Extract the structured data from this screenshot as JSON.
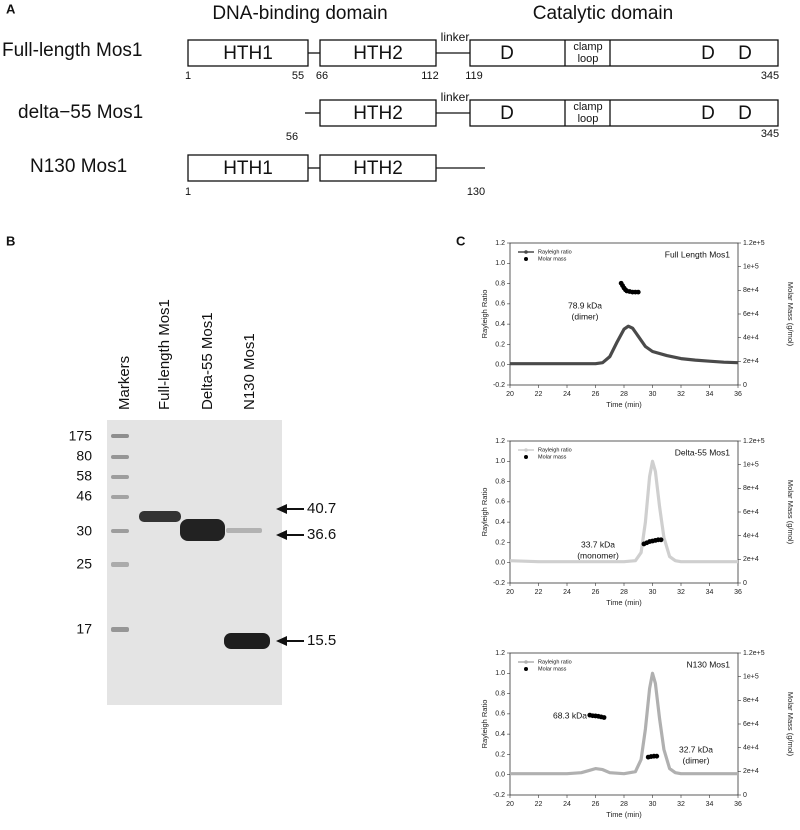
{
  "panel_a": {
    "label": "A",
    "headers": [
      "DNA-binding domain",
      "Catalytic domain"
    ],
    "constructs": [
      {
        "name": "Full-length Mos1",
        "domains": [
          "HTH1",
          "HTH2",
          "linker",
          "D",
          "clamp",
          "loop",
          "D",
          "D"
        ],
        "residues": [
          1,
          55,
          66,
          112,
          119,
          345
        ]
      },
      {
        "name": "delta−55 Mos1",
        "domains": [
          "HTH2",
          "linker",
          "D",
          "clamp",
          "loop",
          "D",
          "D"
        ],
        "residues": [
          56,
          345
        ]
      },
      {
        "name": "N130 Mos1",
        "domains": [
          "HTH1",
          "HTH2"
        ],
        "residues": [
          1,
          130
        ]
      }
    ]
  },
  "panel_b": {
    "label": "B",
    "lanes": [
      "Markers",
      "Full-length Mos1",
      "Delta-55 Mos1",
      "N130 Mos1"
    ],
    "markers": [
      175,
      80,
      58,
      46,
      30,
      25,
      17
    ],
    "arrows": [
      40.7,
      36.6,
      15.5
    ]
  },
  "panel_c": {
    "label": "C"
  },
  "chart_data": [
    {
      "type": "line",
      "title": "Full Length Mos1",
      "xlabel": "Time (min)",
      "ylabel": "Rayleigh Ratio",
      "y2label": "Molar Mass (g/mol)",
      "xlim": [
        20,
        36
      ],
      "xticks": [
        20,
        22,
        24,
        26,
        28,
        30,
        32,
        34,
        36
      ],
      "ylim": [
        -0.2,
        1.2
      ],
      "yticks": [
        -0.2,
        {
          "value": 0,
          "label": "0.0"
        },
        0.2,
        0.4,
        0.6,
        0.8,
        {
          "value": 1,
          "label": "1.0"
        },
        1.2
      ],
      "y2lim": [
        0,
        120000
      ],
      "y2ticks": [
        0,
        {
          "value": 20000,
          "label": "2e+4"
        },
        {
          "value": 40000,
          "label": "4e+4"
        },
        {
          "value": 60000,
          "label": "6e+4"
        },
        {
          "value": 80000,
          "label": "8e+4"
        },
        {
          "value": 100000,
          "label": "1e+5"
        },
        {
          "value": 120000,
          "label": "1.2e+5"
        }
      ],
      "annotations": [
        "78.9 kDa",
        "(dimer)"
      ],
      "series": [
        {
          "name": "Rayleigh ratio",
          "color": "#4a4a4a",
          "x": [
            20,
            22,
            24,
            26,
            26.5,
            27,
            27.5,
            28,
            28.3,
            28.6,
            29,
            29.5,
            30,
            31,
            32,
            33,
            34,
            35,
            36
          ],
          "values": [
            0.01,
            0.01,
            0.01,
            0.01,
            0.02,
            0.08,
            0.22,
            0.35,
            0.38,
            0.36,
            0.28,
            0.18,
            0.13,
            0.09,
            0.06,
            0.045,
            0.035,
            0.025,
            0.02
          ]
        },
        {
          "name": "Molar mass",
          "color": "#000000",
          "axis": "y2",
          "x": [
            27.8,
            27.9,
            28.0,
            28.1,
            28.2,
            28.4,
            28.6,
            28.8,
            29.0
          ],
          "values": [
            86000,
            84000,
            82000,
            80500,
            79500,
            79000,
            78500,
            78500,
            78500
          ]
        }
      ]
    },
    {
      "type": "line",
      "title": "Delta-55 Mos1",
      "xlabel": "Time (min)",
      "ylabel": "Rayleigh Ratio",
      "y2label": "Molar Mass (g/mol)",
      "xlim": [
        20,
        36
      ],
      "xticks": [
        20,
        22,
        24,
        26,
        28,
        30,
        32,
        34,
        36
      ],
      "ylim": [
        -0.2,
        1.2
      ],
      "yticks": [
        -0.2,
        {
          "value": 0,
          "label": "0.0"
        },
        0.2,
        0.4,
        0.6,
        0.8,
        {
          "value": 1,
          "label": "1.0"
        },
        1.2
      ],
      "y2lim": [
        0,
        120000
      ],
      "y2ticks": [
        0,
        {
          "value": 20000,
          "label": "2e+4"
        },
        {
          "value": 40000,
          "label": "4e+4"
        },
        {
          "value": 60000,
          "label": "6e+4"
        },
        {
          "value": 80000,
          "label": "8e+4"
        },
        {
          "value": 100000,
          "label": "1e+5"
        },
        {
          "value": 120000,
          "label": "1.2e+5"
        }
      ],
      "annotations": [
        "33.7 kDa",
        "(monomer)"
      ],
      "series": [
        {
          "name": "Rayleigh ratio",
          "color": "#cfcfcf",
          "x": [
            20,
            22,
            24,
            26,
            28,
            28.8,
            29.2,
            29.5,
            29.8,
            30,
            30.2,
            30.5,
            30.8,
            31.2,
            31.6,
            32,
            34,
            36
          ],
          "values": [
            0.02,
            0.01,
            0.01,
            0.01,
            0.01,
            0.02,
            0.1,
            0.4,
            0.85,
            1.0,
            0.9,
            0.55,
            0.25,
            0.06,
            0.02,
            0.01,
            0.01,
            0.01
          ]
        },
        {
          "name": "Molar mass",
          "color": "#000000",
          "axis": "y2",
          "x": [
            29.4,
            29.6,
            29.8,
            30,
            30.2,
            30.4,
            30.6
          ],
          "values": [
            33000,
            34000,
            35000,
            35500,
            36000,
            36500,
            36500
          ]
        }
      ]
    },
    {
      "type": "line",
      "title": "N130 Mos1",
      "xlabel": "Time (min)",
      "ylabel": "Rayleigh Ratio",
      "y2label": "Molar Mass (g/mol)",
      "xlim": [
        20,
        36
      ],
      "xticks": [
        20,
        22,
        24,
        26,
        28,
        30,
        32,
        34,
        36
      ],
      "ylim": [
        -0.2,
        1.2
      ],
      "yticks": [
        -0.2,
        {
          "value": 0,
          "label": "0.0"
        },
        0.2,
        0.4,
        0.6,
        0.8,
        {
          "value": 1,
          "label": "1.0"
        },
        1.2
      ],
      "y2lim": [
        0,
        120000
      ],
      "y2ticks": [
        0,
        {
          "value": 20000,
          "label": "2e+4"
        },
        {
          "value": 40000,
          "label": "4e+4"
        },
        {
          "value": 60000,
          "label": "6e+4"
        },
        {
          "value": 80000,
          "label": "8e+4"
        },
        {
          "value": 100000,
          "label": "1e+5"
        },
        {
          "value": 120000,
          "label": "1.2e+5"
        }
      ],
      "annotations": [
        "68.3 kDa",
        "32.7 kDa",
        "(dimer)"
      ],
      "series": [
        {
          "name": "Rayleigh ratio",
          "color": "#b0b0b0",
          "x": [
            20,
            22,
            24,
            25,
            25.5,
            26,
            26.5,
            27,
            28,
            28.8,
            29.2,
            29.5,
            29.8,
            30,
            30.2,
            30.5,
            30.8,
            31.2,
            31.6,
            32,
            34,
            36
          ],
          "values": [
            0.01,
            0.01,
            0.01,
            0.02,
            0.04,
            0.06,
            0.05,
            0.02,
            0.01,
            0.03,
            0.15,
            0.45,
            0.85,
            1.0,
            0.9,
            0.55,
            0.25,
            0.06,
            0.02,
            0.01,
            0.01,
            0.01
          ]
        },
        {
          "name": "Molar mass",
          "color": "#000000",
          "axis": "y2",
          "x": [
            25.6,
            25.8,
            26,
            26.2,
            26.4,
            26.6,
            29.7,
            29.9,
            30.1,
            30.3
          ],
          "values": [
            67500,
            67000,
            66800,
            66500,
            66000,
            65500,
            32000,
            32500,
            32800,
            32800
          ]
        }
      ]
    }
  ]
}
